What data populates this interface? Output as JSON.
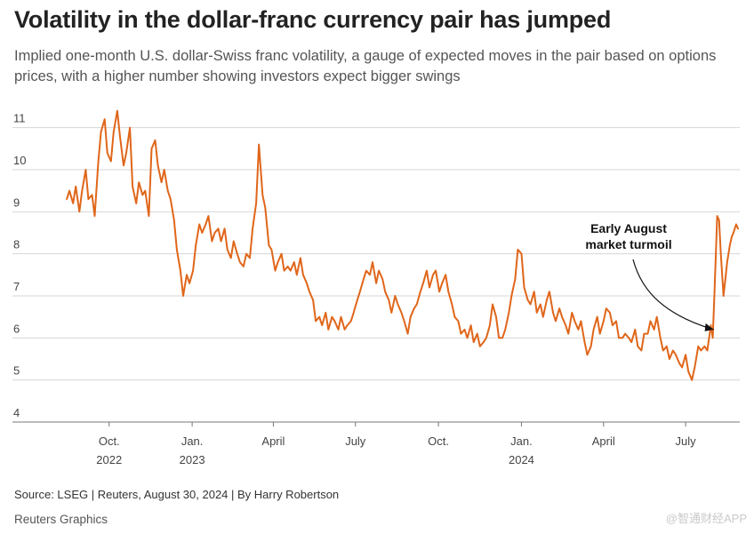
{
  "header": {
    "title": "Volatility in the dollar-franc currency pair has jumped",
    "subtitle": "Implied one-month U.S. dollar-Swiss franc volatility, a gauge of expected moves in the pair based on options prices, with a higher number showing investors expect bigger swings"
  },
  "footer": {
    "source": "Source: LSEG | Reuters, August 30, 2024 | By Harry Robertson",
    "brand": "Reuters Graphics",
    "watermark": "@智通财经APP"
  },
  "chart_data": {
    "type": "line",
    "title": "",
    "xlabel": "",
    "ylabel": "",
    "line_color": "#e0661a",
    "grid": true,
    "ylim": [
      4,
      11.5
    ],
    "xlim": [
      "2022-08-10",
      "2024-08-30"
    ],
    "y_ticks": [
      4,
      5,
      6,
      7,
      8,
      9,
      10,
      11
    ],
    "x_ticks": [
      {
        "date": "2022-10-01",
        "label": "Oct.",
        "sublabel": "2022"
      },
      {
        "date": "2023-01-01",
        "label": "Jan.",
        "sublabel": "2023"
      },
      {
        "date": "2023-04-01",
        "label": "April",
        "sublabel": ""
      },
      {
        "date": "2023-07-01",
        "label": "July",
        "sublabel": ""
      },
      {
        "date": "2023-10-01",
        "label": "Oct.",
        "sublabel": ""
      },
      {
        "date": "2024-01-01",
        "label": "Jan.",
        "sublabel": "2024"
      },
      {
        "date": "2024-04-01",
        "label": "April",
        "sublabel": ""
      },
      {
        "date": "2024-07-01",
        "label": "July",
        "sublabel": ""
      }
    ],
    "annotation": {
      "lines": [
        "Early August",
        "market turmoil"
      ],
      "date": "2024-08-05",
      "value": 6.2
    },
    "series": [
      {
        "points": [
          [
            "2022-08-15",
            9.3
          ],
          [
            "2022-08-18",
            9.5
          ],
          [
            "2022-08-22",
            9.2
          ],
          [
            "2022-08-25",
            9.6
          ],
          [
            "2022-08-29",
            9.0
          ],
          [
            "2022-09-01",
            9.5
          ],
          [
            "2022-09-05",
            10.0
          ],
          [
            "2022-09-08",
            9.3
          ],
          [
            "2022-09-12",
            9.4
          ],
          [
            "2022-09-15",
            8.9
          ],
          [
            "2022-09-19",
            10.2
          ],
          [
            "2022-09-22",
            10.9
          ],
          [
            "2022-09-26",
            11.2
          ],
          [
            "2022-09-29",
            10.4
          ],
          [
            "2022-10-03",
            10.2
          ],
          [
            "2022-10-06",
            10.9
          ],
          [
            "2022-10-10",
            11.4
          ],
          [
            "2022-10-13",
            10.8
          ],
          [
            "2022-10-17",
            10.1
          ],
          [
            "2022-10-20",
            10.4
          ],
          [
            "2022-10-24",
            11.0
          ],
          [
            "2022-10-27",
            9.6
          ],
          [
            "2022-10-31",
            9.2
          ],
          [
            "2022-11-03",
            9.7
          ],
          [
            "2022-11-07",
            9.4
          ],
          [
            "2022-11-10",
            9.5
          ],
          [
            "2022-11-14",
            8.9
          ],
          [
            "2022-11-17",
            10.5
          ],
          [
            "2022-11-21",
            10.7
          ],
          [
            "2022-11-24",
            10.1
          ],
          [
            "2022-11-28",
            9.7
          ],
          [
            "2022-12-01",
            10.0
          ],
          [
            "2022-12-05",
            9.5
          ],
          [
            "2022-12-08",
            9.3
          ],
          [
            "2022-12-12",
            8.8
          ],
          [
            "2022-12-15",
            8.1
          ],
          [
            "2022-12-19",
            7.6
          ],
          [
            "2022-12-22",
            7.0
          ],
          [
            "2022-12-26",
            7.5
          ],
          [
            "2022-12-29",
            7.3
          ],
          [
            "2023-01-02",
            7.6
          ],
          [
            "2023-01-05",
            8.2
          ],
          [
            "2023-01-09",
            8.7
          ],
          [
            "2023-01-12",
            8.5
          ],
          [
            "2023-01-16",
            8.7
          ],
          [
            "2023-01-19",
            8.9
          ],
          [
            "2023-01-23",
            8.3
          ],
          [
            "2023-01-26",
            8.5
          ],
          [
            "2023-01-30",
            8.6
          ],
          [
            "2023-02-02",
            8.3
          ],
          [
            "2023-02-06",
            8.6
          ],
          [
            "2023-02-09",
            8.1
          ],
          [
            "2023-02-13",
            7.9
          ],
          [
            "2023-02-16",
            8.3
          ],
          [
            "2023-02-20",
            8.0
          ],
          [
            "2023-02-23",
            7.8
          ],
          [
            "2023-02-27",
            7.7
          ],
          [
            "2023-03-02",
            8.0
          ],
          [
            "2023-03-06",
            7.9
          ],
          [
            "2023-03-09",
            8.6
          ],
          [
            "2023-03-13",
            9.2
          ],
          [
            "2023-03-16",
            10.6
          ],
          [
            "2023-03-20",
            9.4
          ],
          [
            "2023-03-23",
            9.1
          ],
          [
            "2023-03-27",
            8.2
          ],
          [
            "2023-03-30",
            8.1
          ],
          [
            "2023-04-03",
            7.6
          ],
          [
            "2023-04-06",
            7.8
          ],
          [
            "2023-04-10",
            8.0
          ],
          [
            "2023-04-13",
            7.6
          ],
          [
            "2023-04-17",
            7.7
          ],
          [
            "2023-04-20",
            7.6
          ],
          [
            "2023-04-24",
            7.8
          ],
          [
            "2023-04-27",
            7.5
          ],
          [
            "2023-05-01",
            7.9
          ],
          [
            "2023-05-04",
            7.5
          ],
          [
            "2023-05-08",
            7.3
          ],
          [
            "2023-05-11",
            7.1
          ],
          [
            "2023-05-15",
            6.9
          ],
          [
            "2023-05-18",
            6.4
          ],
          [
            "2023-05-22",
            6.5
          ],
          [
            "2023-05-25",
            6.3
          ],
          [
            "2023-05-29",
            6.6
          ],
          [
            "2023-06-01",
            6.2
          ],
          [
            "2023-06-05",
            6.5
          ],
          [
            "2023-06-08",
            6.4
          ],
          [
            "2023-06-12",
            6.2
          ],
          [
            "2023-06-15",
            6.5
          ],
          [
            "2023-06-19",
            6.2
          ],
          [
            "2023-06-22",
            6.3
          ],
          [
            "2023-06-26",
            6.4
          ],
          [
            "2023-06-29",
            6.6
          ],
          [
            "2023-07-03",
            6.9
          ],
          [
            "2023-07-06",
            7.1
          ],
          [
            "2023-07-10",
            7.4
          ],
          [
            "2023-07-13",
            7.6
          ],
          [
            "2023-07-17",
            7.5
          ],
          [
            "2023-07-20",
            7.8
          ],
          [
            "2023-07-24",
            7.3
          ],
          [
            "2023-07-27",
            7.6
          ],
          [
            "2023-07-31",
            7.4
          ],
          [
            "2023-08-03",
            7.1
          ],
          [
            "2023-08-07",
            6.9
          ],
          [
            "2023-08-10",
            6.6
          ],
          [
            "2023-08-14",
            7.0
          ],
          [
            "2023-08-17",
            6.8
          ],
          [
            "2023-08-21",
            6.6
          ],
          [
            "2023-08-24",
            6.4
          ],
          [
            "2023-08-28",
            6.1
          ],
          [
            "2023-08-31",
            6.5
          ],
          [
            "2023-09-04",
            6.7
          ],
          [
            "2023-09-07",
            6.8
          ],
          [
            "2023-09-11",
            7.1
          ],
          [
            "2023-09-14",
            7.3
          ],
          [
            "2023-09-18",
            7.6
          ],
          [
            "2023-09-21",
            7.2
          ],
          [
            "2023-09-25",
            7.5
          ],
          [
            "2023-09-28",
            7.6
          ],
          [
            "2023-10-02",
            7.1
          ],
          [
            "2023-10-05",
            7.3
          ],
          [
            "2023-10-09",
            7.5
          ],
          [
            "2023-10-12",
            7.1
          ],
          [
            "2023-10-16",
            6.8
          ],
          [
            "2023-10-19",
            6.5
          ],
          [
            "2023-10-23",
            6.4
          ],
          [
            "2023-10-26",
            6.1
          ],
          [
            "2023-10-30",
            6.2
          ],
          [
            "2023-11-02",
            6.0
          ],
          [
            "2023-11-06",
            6.3
          ],
          [
            "2023-11-09",
            5.9
          ],
          [
            "2023-11-13",
            6.1
          ],
          [
            "2023-11-16",
            5.8
          ],
          [
            "2023-11-20",
            5.9
          ],
          [
            "2023-11-23",
            6.0
          ],
          [
            "2023-11-27",
            6.3
          ],
          [
            "2023-11-30",
            6.8
          ],
          [
            "2023-12-04",
            6.5
          ],
          [
            "2023-12-07",
            6.0
          ],
          [
            "2023-12-11",
            6.0
          ],
          [
            "2023-12-14",
            6.2
          ],
          [
            "2023-12-18",
            6.6
          ],
          [
            "2023-12-21",
            7.0
          ],
          [
            "2023-12-25",
            7.4
          ],
          [
            "2023-12-28",
            8.1
          ],
          [
            "2024-01-01",
            8.0
          ],
          [
            "2024-01-04",
            7.2
          ],
          [
            "2024-01-08",
            6.9
          ],
          [
            "2024-01-11",
            6.8
          ],
          [
            "2024-01-15",
            7.1
          ],
          [
            "2024-01-18",
            6.6
          ],
          [
            "2024-01-22",
            6.8
          ],
          [
            "2024-01-25",
            6.5
          ],
          [
            "2024-01-29",
            6.9
          ],
          [
            "2024-02-01",
            7.1
          ],
          [
            "2024-02-05",
            6.6
          ],
          [
            "2024-02-08",
            6.4
          ],
          [
            "2024-02-12",
            6.7
          ],
          [
            "2024-02-15",
            6.5
          ],
          [
            "2024-02-19",
            6.3
          ],
          [
            "2024-02-22",
            6.1
          ],
          [
            "2024-02-26",
            6.6
          ],
          [
            "2024-02-29",
            6.4
          ],
          [
            "2024-03-04",
            6.2
          ],
          [
            "2024-03-07",
            6.4
          ],
          [
            "2024-03-11",
            5.9
          ],
          [
            "2024-03-14",
            5.6
          ],
          [
            "2024-03-18",
            5.8
          ],
          [
            "2024-03-21",
            6.2
          ],
          [
            "2024-03-25",
            6.5
          ],
          [
            "2024-03-28",
            6.1
          ],
          [
            "2024-04-01",
            6.4
          ],
          [
            "2024-04-04",
            6.7
          ],
          [
            "2024-04-08",
            6.6
          ],
          [
            "2024-04-11",
            6.3
          ],
          [
            "2024-04-15",
            6.4
          ],
          [
            "2024-04-18",
            6.0
          ],
          [
            "2024-04-22",
            6.0
          ],
          [
            "2024-04-25",
            6.1
          ],
          [
            "2024-04-29",
            6.0
          ],
          [
            "2024-05-02",
            5.9
          ],
          [
            "2024-05-06",
            6.2
          ],
          [
            "2024-05-09",
            5.8
          ],
          [
            "2024-05-13",
            5.7
          ],
          [
            "2024-05-16",
            6.1
          ],
          [
            "2024-05-20",
            6.1
          ],
          [
            "2024-05-23",
            6.4
          ],
          [
            "2024-05-27",
            6.2
          ],
          [
            "2024-05-30",
            6.5
          ],
          [
            "2024-06-03",
            6.0
          ],
          [
            "2024-06-06",
            5.7
          ],
          [
            "2024-06-10",
            5.8
          ],
          [
            "2024-06-13",
            5.5
          ],
          [
            "2024-06-17",
            5.7
          ],
          [
            "2024-06-20",
            5.6
          ],
          [
            "2024-06-24",
            5.4
          ],
          [
            "2024-06-27",
            5.3
          ],
          [
            "2024-07-01",
            5.6
          ],
          [
            "2024-07-04",
            5.2
          ],
          [
            "2024-07-08",
            5.0
          ],
          [
            "2024-07-11",
            5.3
          ],
          [
            "2024-07-15",
            5.8
          ],
          [
            "2024-07-18",
            5.7
          ],
          [
            "2024-07-22",
            5.8
          ],
          [
            "2024-07-25",
            5.7
          ],
          [
            "2024-07-29",
            6.3
          ],
          [
            "2024-07-31",
            6.0
          ],
          [
            "2024-08-02",
            7.1
          ],
          [
            "2024-08-05",
            8.9
          ],
          [
            "2024-08-07",
            8.8
          ],
          [
            "2024-08-09",
            8.0
          ],
          [
            "2024-08-12",
            7.0
          ],
          [
            "2024-08-14",
            7.4
          ],
          [
            "2024-08-16",
            7.8
          ],
          [
            "2024-08-19",
            8.2
          ],
          [
            "2024-08-21",
            8.4
          ],
          [
            "2024-08-23",
            8.5
          ],
          [
            "2024-08-26",
            8.7
          ],
          [
            "2024-08-28",
            8.6
          ]
        ]
      }
    ]
  }
}
